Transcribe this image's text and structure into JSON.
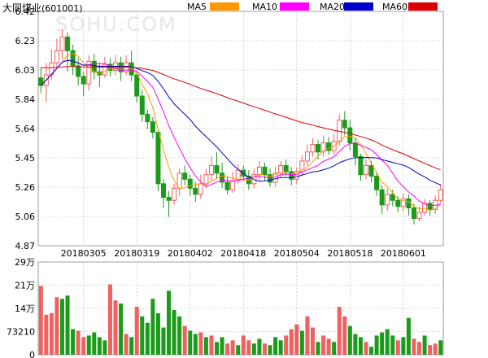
{
  "stock": {
    "name": "大同煤业",
    "code": "(601001)"
  },
  "watermark": "SOHU.COM",
  "colors": {
    "up": "#f06060",
    "down": "#1a9c1a",
    "ma5": "#ff9900",
    "ma10": "#ff00ff",
    "ma20": "#0000cc",
    "ma60": "#dd0000",
    "grid": "#b8b8b8"
  },
  "chart_data": [
    {
      "type": "candlestick",
      "title": "",
      "legend": [
        {
          "name": "MA5",
          "color": "#ff9900"
        },
        {
          "name": "MA10",
          "color": "#ff00ff"
        },
        {
          "name": "MA20",
          "color": "#0000cc"
        },
        {
          "name": "MA60",
          "color": "#dd0000"
        }
      ],
      "legend_position": "top",
      "y_ticks": [
        "6.42",
        "6.23",
        "6.03",
        "5.84",
        "5.64",
        "5.45",
        "5.26",
        "5.06",
        "4.87"
      ],
      "ylim": [
        4.87,
        6.42
      ],
      "x_tick_labels": [
        "20180305",
        "20180319",
        "20180402",
        "20180418",
        "20180504",
        "20180518",
        "20180601"
      ],
      "x_tick_index": [
        8,
        18,
        28,
        38,
        48,
        58,
        68
      ],
      "candles": [
        [
          5.98,
          5.93,
          6.05,
          5.88
        ],
        [
          5.93,
          6.0,
          6.08,
          5.82
        ],
        [
          6.0,
          6.08,
          6.17,
          5.97
        ],
        [
          6.08,
          6.16,
          6.24,
          6.04
        ],
        [
          6.16,
          6.25,
          6.3,
          6.1
        ],
        [
          6.25,
          6.16,
          6.28,
          6.02
        ],
        [
          6.16,
          6.06,
          6.2,
          6.0
        ],
        [
          6.06,
          5.99,
          6.11,
          5.93
        ],
        [
          5.99,
          5.94,
          6.02,
          5.86
        ],
        [
          5.94,
          6.09,
          6.13,
          5.9
        ],
        [
          6.09,
          6.02,
          6.14,
          5.97
        ],
        [
          6.02,
          6.0,
          6.08,
          5.92
        ],
        [
          6.0,
          6.07,
          6.12,
          5.98
        ],
        [
          6.07,
          6.03,
          6.11,
          5.99
        ],
        [
          6.03,
          6.08,
          6.13,
          6.0
        ],
        [
          6.08,
          6.02,
          6.12,
          5.96
        ],
        [
          6.02,
          6.08,
          6.13,
          6.0
        ],
        [
          6.08,
          6.0,
          6.16,
          5.96
        ],
        [
          6.0,
          5.86,
          6.02,
          5.82
        ],
        [
          5.86,
          5.74,
          5.9,
          5.69
        ],
        [
          5.74,
          5.69,
          5.77,
          5.64
        ],
        [
          5.69,
          5.62,
          5.72,
          5.58
        ],
        [
          5.62,
          5.28,
          5.64,
          5.23
        ],
        [
          5.28,
          5.19,
          5.31,
          5.12
        ],
        [
          5.19,
          5.17,
          5.23,
          5.06
        ],
        [
          5.17,
          5.25,
          5.28,
          5.14
        ],
        [
          5.25,
          5.35,
          5.38,
          5.2
        ],
        [
          5.35,
          5.31,
          5.4,
          5.27
        ],
        [
          5.31,
          5.25,
          5.34,
          5.2
        ],
        [
          5.25,
          5.21,
          5.29,
          5.16
        ],
        [
          5.21,
          5.28,
          5.34,
          5.18
        ],
        [
          5.28,
          5.34,
          5.38,
          5.25
        ],
        [
          5.34,
          5.4,
          5.46,
          5.3
        ],
        [
          5.4,
          5.35,
          5.49,
          5.31
        ],
        [
          5.35,
          5.29,
          5.42,
          5.25
        ],
        [
          5.29,
          5.24,
          5.33,
          5.21
        ],
        [
          5.24,
          5.3,
          5.36,
          5.22
        ],
        [
          5.3,
          5.37,
          5.41,
          5.28
        ],
        [
          5.37,
          5.33,
          5.4,
          5.3
        ],
        [
          5.33,
          5.28,
          5.37,
          5.24
        ],
        [
          5.28,
          5.34,
          5.38,
          5.25
        ],
        [
          5.34,
          5.39,
          5.43,
          5.3
        ],
        [
          5.39,
          5.34,
          5.42,
          5.3
        ],
        [
          5.34,
          5.29,
          5.38,
          5.26
        ],
        [
          5.29,
          5.35,
          5.39,
          5.26
        ],
        [
          5.35,
          5.4,
          5.43,
          5.32
        ],
        [
          5.4,
          5.36,
          5.44,
          5.33
        ],
        [
          5.36,
          5.31,
          5.39,
          5.27
        ],
        [
          5.31,
          5.36,
          5.39,
          5.28
        ],
        [
          5.36,
          5.43,
          5.47,
          5.33
        ],
        [
          5.43,
          5.49,
          5.54,
          5.4
        ],
        [
          5.49,
          5.54,
          5.58,
          5.46
        ],
        [
          5.54,
          5.49,
          5.57,
          5.44
        ],
        [
          5.49,
          5.55,
          5.6,
          5.46
        ],
        [
          5.55,
          5.5,
          5.59,
          5.47
        ],
        [
          5.5,
          5.56,
          5.61,
          5.47
        ],
        [
          5.56,
          5.7,
          5.74,
          5.53
        ],
        [
          5.7,
          5.65,
          5.76,
          5.6
        ],
        [
          5.65,
          5.55,
          5.7,
          5.5
        ],
        [
          5.55,
          5.46,
          5.58,
          5.4
        ],
        [
          5.46,
          5.34,
          5.48,
          5.3
        ],
        [
          5.34,
          5.4,
          5.44,
          5.31
        ],
        [
          5.4,
          5.33,
          5.43,
          5.29
        ],
        [
          5.33,
          5.24,
          5.36,
          5.2
        ],
        [
          5.24,
          5.14,
          5.27,
          5.08
        ],
        [
          5.14,
          5.21,
          5.25,
          5.1
        ],
        [
          5.21,
          5.17,
          5.24,
          5.13
        ],
        [
          5.17,
          5.13,
          5.2,
          5.09
        ],
        [
          5.13,
          5.18,
          5.22,
          5.1
        ],
        [
          5.18,
          5.12,
          5.21,
          5.07
        ],
        [
          5.12,
          5.05,
          5.15,
          5.01
        ],
        [
          5.05,
          5.09,
          5.13,
          5.03
        ],
        [
          5.09,
          5.15,
          5.18,
          5.07
        ],
        [
          5.15,
          5.11,
          5.17,
          5.07
        ],
        [
          5.11,
          5.17,
          5.2,
          5.08
        ],
        [
          5.17,
          5.24,
          5.28,
          5.15
        ]
      ]
    },
    {
      "type": "bar",
      "title": "",
      "y_ticks": [
        "29万",
        "21万",
        "14万",
        "73210",
        "0"
      ],
      "ylim": [
        0,
        290000
      ],
      "volumes": [
        [
          215000,
          1
        ],
        [
          125000,
          1
        ],
        [
          130000,
          1
        ],
        [
          180000,
          1
        ],
        [
          175000,
          0
        ],
        [
          185000,
          0
        ],
        [
          80000,
          0
        ],
        [
          75000,
          1
        ],
        [
          55000,
          1
        ],
        [
          60000,
          0
        ],
        [
          70000,
          0
        ],
        [
          55000,
          0
        ],
        [
          45000,
          0
        ],
        [
          220000,
          1
        ],
        [
          170000,
          1
        ],
        [
          160000,
          0
        ],
        [
          65000,
          1
        ],
        [
          55000,
          0
        ],
        [
          150000,
          1
        ],
        [
          120000,
          0
        ],
        [
          100000,
          0
        ],
        [
          175000,
          0
        ],
        [
          130000,
          0
        ],
        [
          85000,
          0
        ],
        [
          200000,
          0
        ],
        [
          140000,
          0
        ],
        [
          120000,
          0
        ],
        [
          90000,
          1
        ],
        [
          75000,
          0
        ],
        [
          65000,
          0
        ],
        [
          70000,
          1
        ],
        [
          55000,
          0
        ],
        [
          60000,
          1
        ],
        [
          40000,
          0
        ],
        [
          55000,
          0
        ],
        [
          35000,
          1
        ],
        [
          45000,
          1
        ],
        [
          30000,
          0
        ],
        [
          60000,
          1
        ],
        [
          45000,
          1
        ],
        [
          35000,
          0
        ],
        [
          50000,
          0
        ],
        [
          35000,
          1
        ],
        [
          30000,
          0
        ],
        [
          55000,
          0
        ],
        [
          45000,
          0
        ],
        [
          60000,
          1
        ],
        [
          80000,
          1
        ],
        [
          95000,
          1
        ],
        [
          75000,
          0
        ],
        [
          120000,
          1
        ],
        [
          85000,
          1
        ],
        [
          40000,
          0
        ],
        [
          60000,
          1
        ],
        [
          50000,
          1
        ],
        [
          40000,
          0
        ],
        [
          150000,
          1
        ],
        [
          120000,
          1
        ],
        [
          90000,
          0
        ],
        [
          65000,
          0
        ],
        [
          55000,
          0
        ],
        [
          40000,
          1
        ],
        [
          25000,
          0
        ],
        [
          60000,
          0
        ],
        [
          70000,
          0
        ],
        [
          80000,
          0
        ],
        [
          60000,
          0
        ],
        [
          45000,
          1
        ],
        [
          55000,
          0
        ],
        [
          115000,
          0
        ],
        [
          50000,
          1
        ],
        [
          40000,
          1
        ],
        [
          60000,
          0
        ],
        [
          30000,
          1
        ],
        [
          35000,
          1
        ],
        [
          45000,
          0
        ]
      ]
    }
  ]
}
